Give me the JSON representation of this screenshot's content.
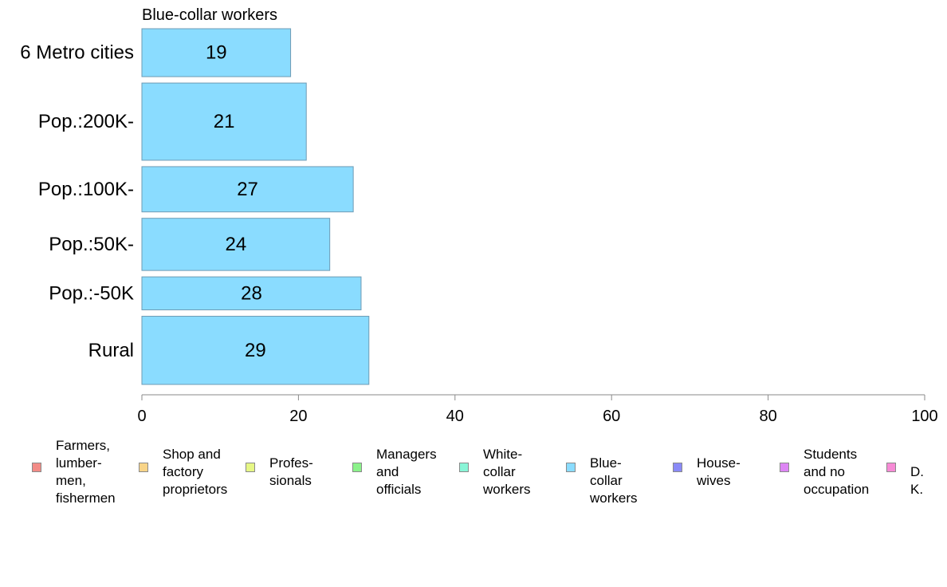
{
  "chart_data": {
    "type": "bar",
    "orientation": "horizontal",
    "title": "Blue-collar workers",
    "categories": [
      "6 Metro cities",
      "Pop.:200K-",
      "Pop.:100K-",
      "Pop.:50K-",
      "Pop.:-50K",
      "Rural"
    ],
    "series": [
      {
        "name": "Blue-collar workers",
        "values": [
          19,
          21,
          27,
          24,
          28,
          29
        ]
      }
    ],
    "data_labels": [
      "19",
      "21",
      "27",
      "24",
      "28",
      "29"
    ],
    "category_weights": [
      0.9,
      1.45,
      0.85,
      0.98,
      0.62,
      1.28
    ],
    "xlim": [
      0,
      100
    ],
    "x_ticks": [
      0,
      20,
      40,
      60,
      80,
      100
    ],
    "grid": false,
    "bar_color": "#8ADCFF",
    "bar_border_color": "#6E9BB4",
    "axis_color": "#8a8a8a",
    "legend_position": "bottom",
    "legend": [
      {
        "label": "Farmers,\nlumber-\nmen,\nfishermen",
        "color": "#F28B86"
      },
      {
        "label": "Shop and\nfactory\nproprietors",
        "color": "#F8D488"
      },
      {
        "label": "Profes-\nsionals",
        "color": "#E6F785"
      },
      {
        "label": "Managers\nand\nofficials",
        "color": "#8BF28A"
      },
      {
        "label": "White-\ncollar\nworkers",
        "color": "#89F5D7"
      },
      {
        "label": "Blue-collar\nworkers",
        "color": "#8ADCFF"
      },
      {
        "label": "House-\nwives",
        "color": "#8A8AF7"
      },
      {
        "label": "Students\nand no\noccupation",
        "color": "#DD85F4"
      },
      {
        "label": "D. K.",
        "color": "#F78BD6"
      }
    ]
  }
}
